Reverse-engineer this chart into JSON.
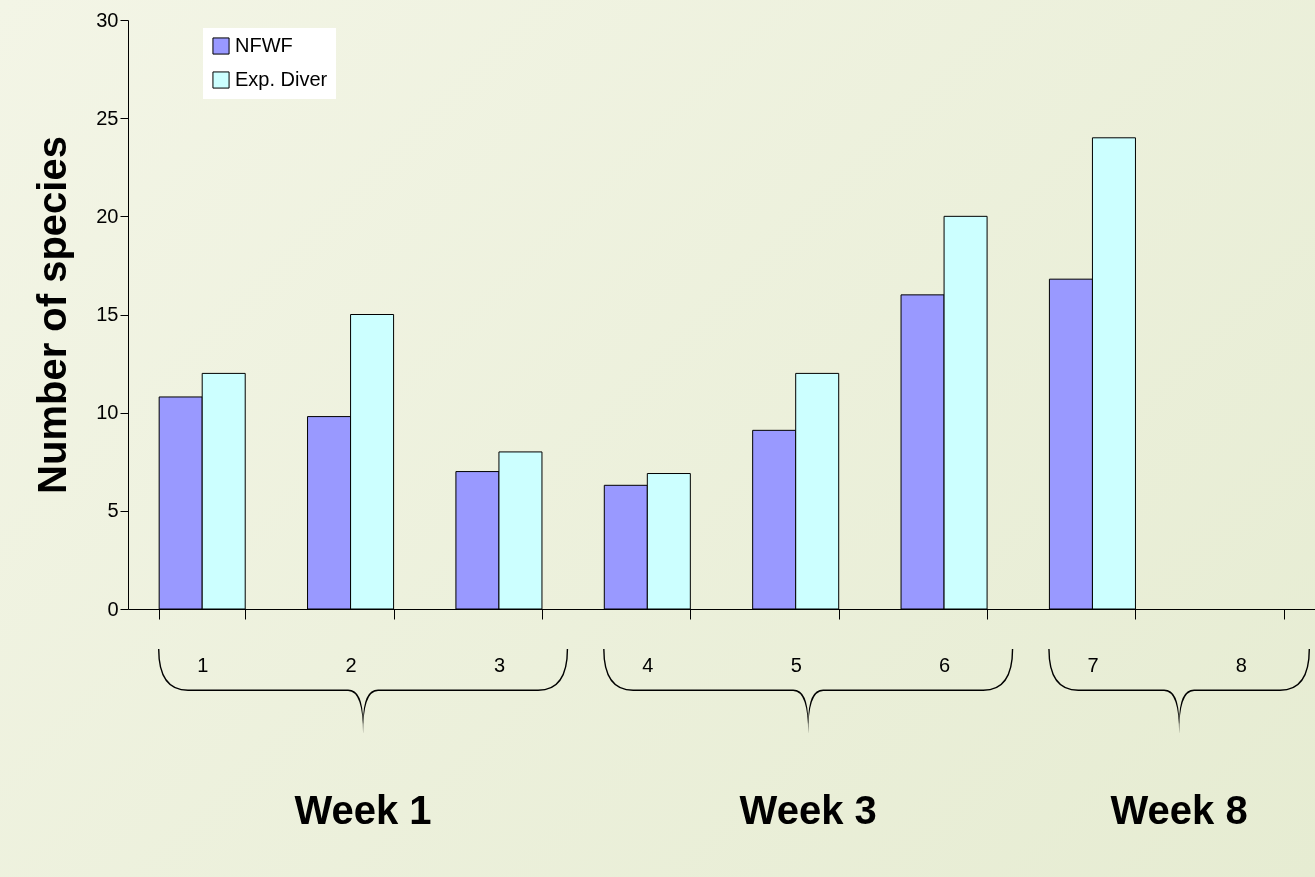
{
  "chart_data": {
    "type": "bar",
    "ylabel": "Number of species",
    "categories": [
      "1",
      "2",
      "3",
      "4",
      "5",
      "6",
      "7",
      "8"
    ],
    "series": [
      {
        "name": "NFWF",
        "color": "#9999ff",
        "values": [
          10.8,
          9.8,
          7,
          6.3,
          9.1,
          16,
          16.8,
          null
        ]
      },
      {
        "name": "Exp. Diver",
        "color": "#ccffff",
        "values": [
          12,
          15,
          8,
          6.9,
          12,
          20,
          24,
          null
        ]
      }
    ],
    "ylim": [
      0,
      30
    ],
    "yticks": [
      0,
      5,
      10,
      15,
      20,
      25,
      30
    ],
    "grid": false,
    "legend": "top left",
    "annotations": [
      "Week 1",
      "Week 3",
      "Week 8"
    ]
  }
}
